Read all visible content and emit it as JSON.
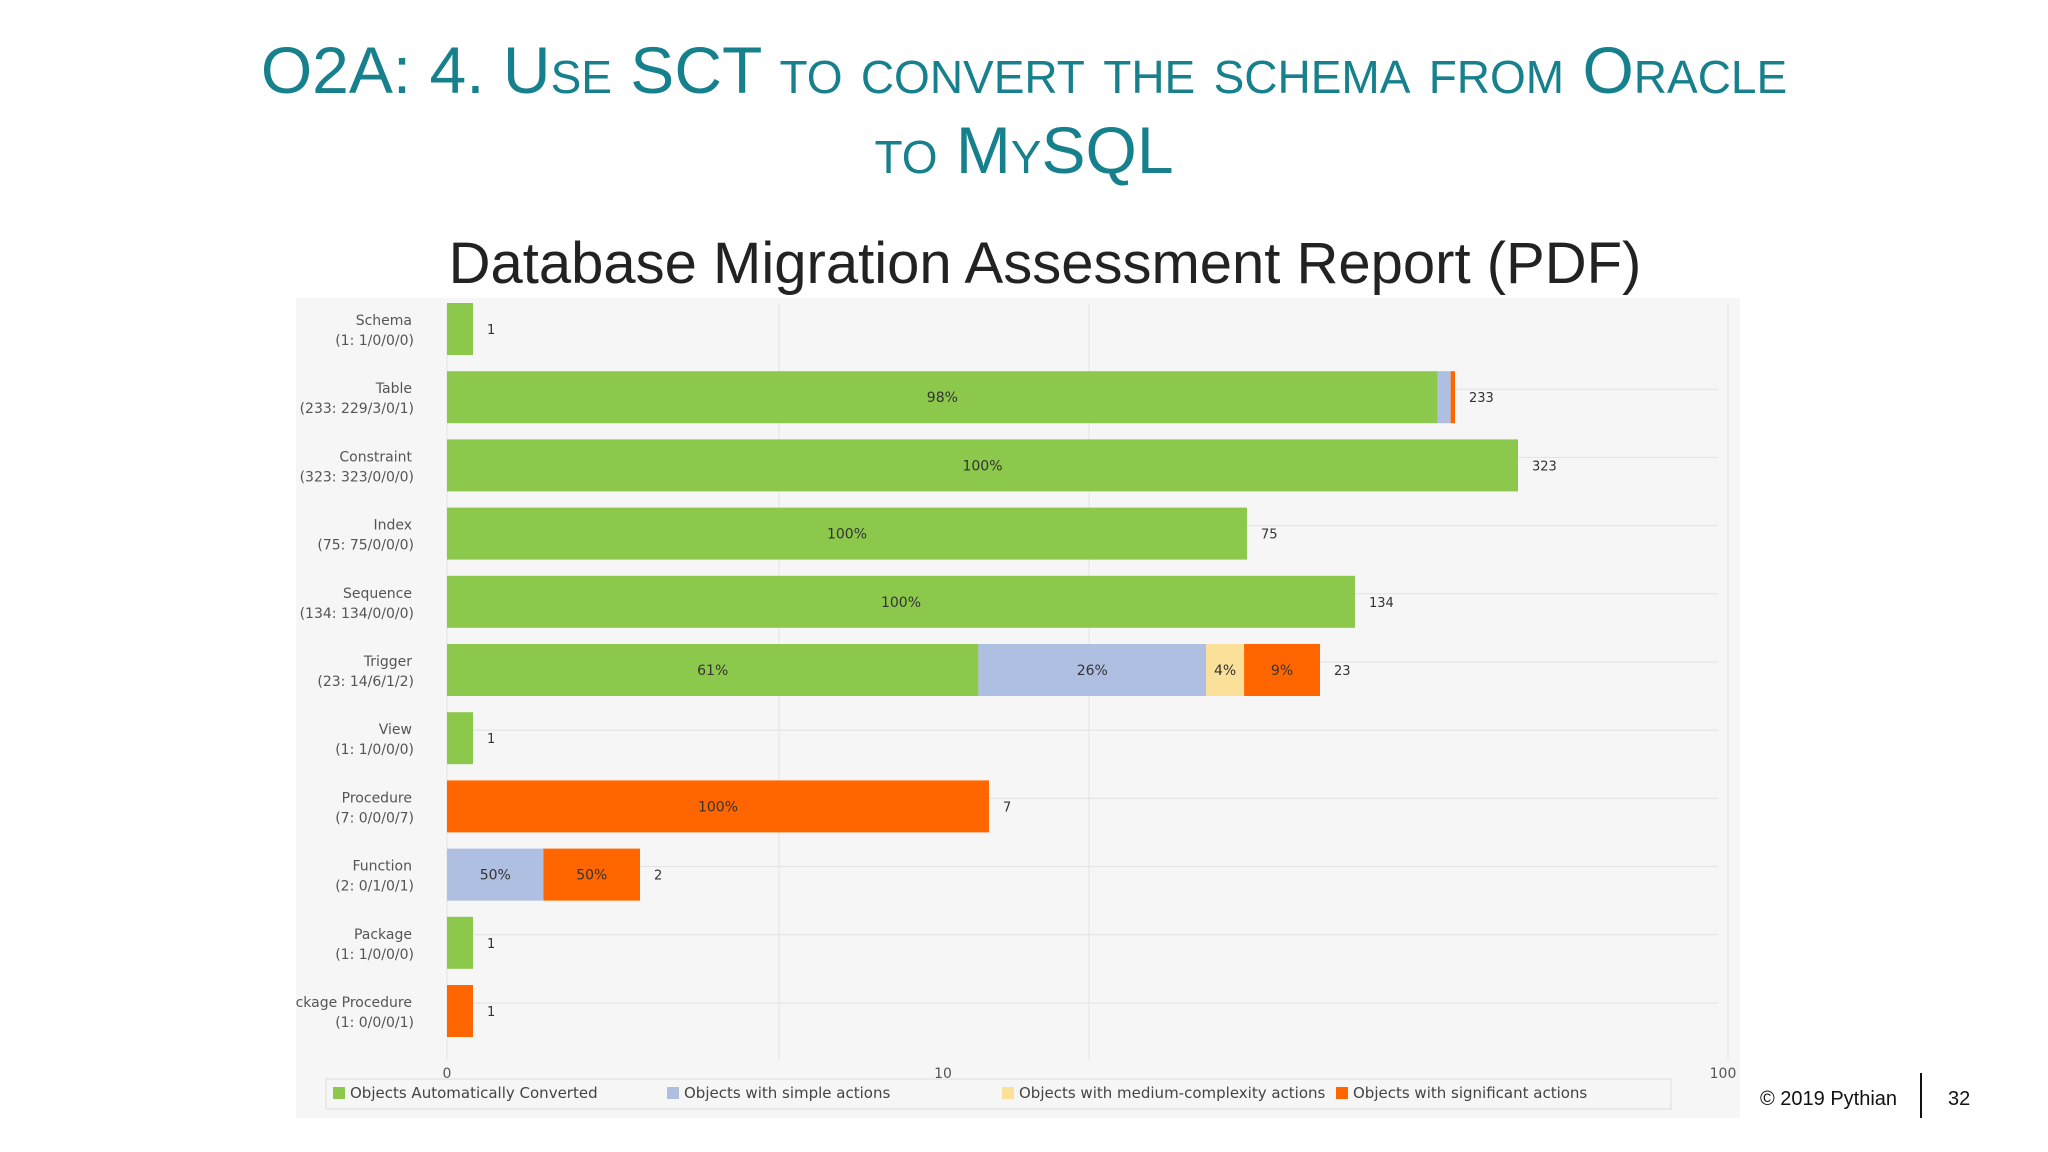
{
  "slide": {
    "title_line1": "O2A: 4. Use SCT to convert the schema from Oracle",
    "title_line2": "to MySQL",
    "subtitle": "Database Migration Assessment Report (PDF)",
    "footer_copyright": "© 2019 Pythian",
    "footer_page": "32"
  },
  "colors": {
    "title": "#17808d",
    "auto": "#8cc84b",
    "simple": "#aebfe2",
    "medium": "#fbe09a",
    "significant": "#ff6600"
  },
  "chart_data": {
    "type": "bar",
    "orientation": "horizontal",
    "stacked": true,
    "x_scale": "log",
    "xlim": [
      0,
      100
    ],
    "x_ticks": [
      "0",
      "10",
      "100"
    ],
    "grid": true,
    "legend_position": "bottom",
    "categories": [
      {
        "label": "Schema",
        "sublabel": "(1: 1/0/0/0)",
        "total": "1"
      },
      {
        "label": "Table",
        "sublabel": "(233: 229/3/0/1)",
        "total": "233"
      },
      {
        "label": "Constraint",
        "sublabel": "(323: 323/0/0/0)",
        "total": "323"
      },
      {
        "label": "Index",
        "sublabel": "(75: 75/0/0/0)",
        "total": "75"
      },
      {
        "label": "Sequence",
        "sublabel": "(134: 134/0/0/0)",
        "total": "134"
      },
      {
        "label": "Trigger",
        "sublabel": "(23: 14/6/1/2)",
        "total": "23"
      },
      {
        "label": "View",
        "sublabel": "(1: 1/0/0/0)",
        "total": "1"
      },
      {
        "label": "Procedure",
        "sublabel": "(7: 0/0/0/7)",
        "total": "7"
      },
      {
        "label": "Function",
        "sublabel": "(2: 0/1/0/1)",
        "total": "2"
      },
      {
        "label": "Package",
        "sublabel": "(1: 1/0/0/0)",
        "total": "1"
      },
      {
        "label": "ckage Procedure",
        "sublabel": "(1: 0/0/0/1)",
        "total": "1"
      }
    ],
    "series": [
      {
        "name": "Objects Automatically Converted",
        "values": [
          1,
          229,
          323,
          75,
          134,
          14,
          1,
          0,
          0,
          1,
          0
        ],
        "labels": [
          "",
          "98%",
          "100%",
          "100%",
          "100%",
          "61%",
          "",
          "",
          "",
          "",
          ""
        ]
      },
      {
        "name": "Objects with simple actions",
        "values": [
          0,
          3,
          0,
          0,
          0,
          6,
          0,
          0,
          1,
          0,
          0
        ],
        "labels": [
          "",
          "",
          "",
          "",
          "",
          "26%",
          "",
          "",
          "50%",
          "",
          ""
        ]
      },
      {
        "name": "Objects with medium-complexity actions",
        "values": [
          0,
          0,
          0,
          0,
          0,
          1,
          0,
          0,
          0,
          0,
          0
        ],
        "labels": [
          "",
          "",
          "",
          "",
          "",
          "4%",
          "",
          "",
          "",
          "",
          ""
        ]
      },
      {
        "name": "Objects with significant actions",
        "values": [
          0,
          1,
          0,
          0,
          0,
          2,
          0,
          7,
          1,
          0,
          1
        ],
        "labels": [
          "",
          "",
          "",
          "",
          "",
          "9%",
          "",
          "100%",
          "50%",
          "",
          ""
        ]
      }
    ]
  }
}
